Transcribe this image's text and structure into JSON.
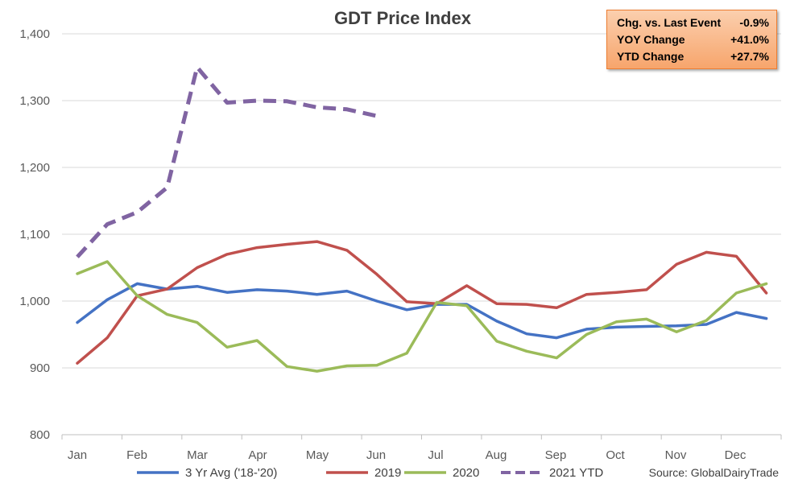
{
  "chart_data": {
    "type": "line",
    "title": "GDT Price Index",
    "xlabel": "",
    "ylabel": "",
    "ylim": [
      800,
      1400
    ],
    "yticks": [
      800,
      900,
      1000,
      1100,
      1200,
      1300,
      1400
    ],
    "ytick_labels": [
      "800",
      "900",
      "1,000",
      "1,100",
      "1,200",
      "1,300",
      "1,400"
    ],
    "month_labels": [
      "Jan",
      "Feb",
      "Mar",
      "Apr",
      "May",
      "Jun",
      "Jul",
      "Aug",
      "Sep",
      "Oct",
      "Nov",
      "Dec"
    ],
    "x_events": [
      1,
      2,
      3,
      4,
      5,
      6,
      7,
      8,
      9,
      10,
      11,
      12,
      13,
      14,
      15,
      16,
      17,
      18,
      19,
      20,
      21,
      22,
      23,
      24
    ],
    "grid": true,
    "legend_position": "bottom",
    "series": [
      {
        "name": "3 Yr Avg ('18-'20)",
        "color": "#4472C4",
        "dashed": false,
        "values": [
          968,
          1002,
          1026,
          1018,
          1022,
          1013,
          1017,
          1015,
          1010,
          1015,
          1000,
          987,
          995,
          995,
          970,
          951,
          945,
          958,
          961,
          962,
          963,
          965,
          983,
          974
        ]
      },
      {
        "name": "2019",
        "color": "#C0504D",
        "dashed": false,
        "values": [
          907,
          945,
          1008,
          1018,
          1050,
          1070,
          1080,
          1085,
          1089,
          1076,
          1040,
          999,
          996,
          1023,
          996,
          995,
          990,
          1010,
          1013,
          1017,
          1055,
          1073,
          1067,
          1012
        ]
      },
      {
        "name": "2020",
        "color": "#9BBB59",
        "dashed": false,
        "values": [
          1041,
          1059,
          1008,
          980,
          968,
          931,
          941,
          902,
          895,
          903,
          904,
          922,
          998,
          993,
          940,
          925,
          915,
          950,
          969,
          973,
          954,
          971,
          1012,
          1026
        ]
      },
      {
        "name": "2021 YTD",
        "color": "#8064A2",
        "dashed": true,
        "values": [
          1066,
          1115,
          1133,
          1170,
          1350,
          1297,
          1300,
          1299,
          1290,
          1287,
          1277
        ]
      }
    ]
  },
  "stats": [
    {
      "label": "Chg. vs. Last Event",
      "value": "-0.9%"
    },
    {
      "label": "YOY Change",
      "value": "+41.0%"
    },
    {
      "label": "YTD Change",
      "value": "+27.7%"
    }
  ],
  "source": "Source: GlobalDairyTrade"
}
